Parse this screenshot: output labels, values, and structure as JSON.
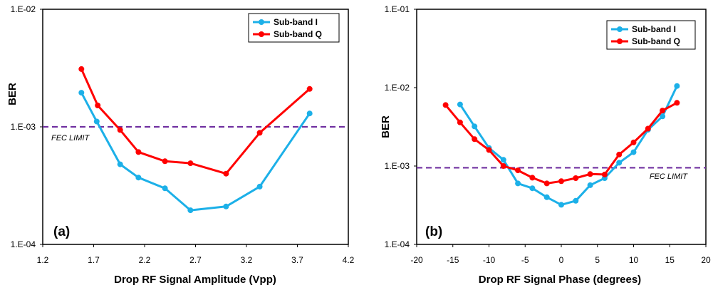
{
  "chart_data": [
    {
      "type": "line",
      "panel_label": "(a)",
      "xlabel": "Drop RF Signal Amplitude (Vpp)",
      "ylabel": "BER",
      "xlim": [
        1.2,
        4.2
      ],
      "ylim": [
        0.0001,
        0.01
      ],
      "y_scale": "log",
      "x_ticks": [
        "1.2",
        "1.7",
        "2.2",
        "2.7",
        "3.2",
        "3.7",
        "4.2"
      ],
      "y_ticks": [
        "1.E-04",
        "1.E-03",
        "1.E-02"
      ],
      "legend_position": "top-right",
      "threshold": {
        "label": "FEC LIMIT",
        "value": 0.001,
        "color": "#7030a0"
      },
      "series": [
        {
          "name": "Sub-band I",
          "color": "#1cb0e8",
          "x": [
            1.58,
            1.73,
            1.96,
            2.14,
            2.4,
            2.65,
            3.0,
            3.33,
            3.82
          ],
          "y": [
            0.00195,
            0.00111,
            0.00048,
            0.00037,
            0.0003,
            0.000195,
            0.00021,
            0.00031,
            0.0013
          ]
        },
        {
          "name": "Sub-band Q",
          "color": "#ff0000",
          "x": [
            1.58,
            1.74,
            1.96,
            2.14,
            2.4,
            2.65,
            3.0,
            3.33,
            3.82
          ],
          "y": [
            0.0031,
            0.00152,
            0.00094,
            0.00061,
            0.00051,
            0.00049,
            0.0004,
            0.00089,
            0.0021
          ]
        }
      ]
    },
    {
      "type": "line",
      "panel_label": "(b)",
      "xlabel": "Drop RF Signal Phase (degrees)",
      "ylabel": "BER",
      "xlim": [
        -20,
        20
      ],
      "ylim": [
        0.0001,
        0.1
      ],
      "y_scale": "log",
      "x_ticks": [
        "-20",
        "-15",
        "-10",
        "-5",
        "0",
        "5",
        "10",
        "15",
        "20"
      ],
      "y_ticks": [
        "1.E-04",
        "1.E-03",
        "1.E-02",
        "1.E-01"
      ],
      "legend_position": "top-right",
      "threshold": {
        "label": "FEC LIMIT",
        "value": 0.00095,
        "color": "#7030a0"
      },
      "series": [
        {
          "name": "Sub-band I",
          "color": "#1cb0e8",
          "x": [
            -14,
            -12,
            -10,
            -8,
            -6,
            -4,
            -2,
            0,
            2,
            4,
            6,
            8,
            10,
            12,
            14,
            16
          ],
          "y": [
            0.0061,
            0.0032,
            0.0017,
            0.0012,
            0.0006,
            0.00052,
            0.0004,
            0.00032,
            0.00036,
            0.00057,
            0.0007,
            0.0011,
            0.0015,
            0.0029,
            0.0043,
            0.0105
          ]
        },
        {
          "name": "Sub-band Q",
          "color": "#ff0000",
          "x": [
            -16,
            -14,
            -12,
            -10,
            -8,
            -6,
            -4,
            -2,
            0,
            2,
            4,
            6,
            8,
            10,
            12,
            14,
            16
          ],
          "y": [
            0.006,
            0.0036,
            0.0022,
            0.0016,
            0.001,
            0.00088,
            0.00071,
            0.0006,
            0.00064,
            0.0007,
            0.00079,
            0.00078,
            0.0014,
            0.002,
            0.003,
            0.0051,
            0.0064
          ]
        }
      ]
    }
  ]
}
